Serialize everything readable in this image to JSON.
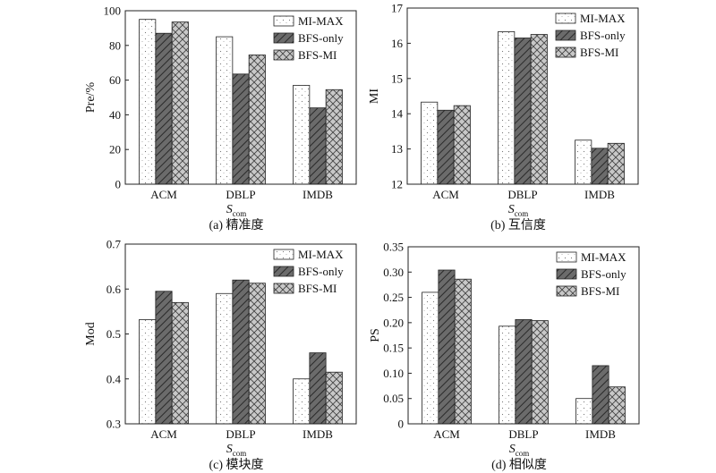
{
  "legend_labels": [
    "MI-MAX",
    "BFS-only",
    "BFS-MI"
  ],
  "colors": {
    "dots_fill": "#ffffff",
    "hatch_fill": "#6b6b6b",
    "cross_fill": "#c8c8c8",
    "stroke": "#222222"
  },
  "chart_data": [
    {
      "type": "bar",
      "categories": [
        "ACM",
        "DBLP",
        "IMDB"
      ],
      "series": [
        {
          "name": "MI-MAX",
          "values": [
            95,
            85,
            57
          ]
        },
        {
          "name": "BFS-only",
          "values": [
            87,
            63.5,
            44
          ]
        },
        {
          "name": "BFS-MI",
          "values": [
            93.5,
            74.5,
            54.5
          ]
        }
      ],
      "ylabel": "Pre/%",
      "xlabel_main": "S",
      "xlabel_sub": "com",
      "caption": "(a) 精准度",
      "ylim": [
        0,
        100
      ],
      "yticks": [
        "0",
        "20",
        "40",
        "60",
        "80",
        "100"
      ],
      "legend_position": "top-right"
    },
    {
      "type": "bar",
      "categories": [
        "ACM",
        "DBLP",
        "IMDB"
      ],
      "series": [
        {
          "name": "MI-MAX",
          "values": [
            14.33,
            16.33,
            13.25
          ]
        },
        {
          "name": "BFS-only",
          "values": [
            14.1,
            16.15,
            13.02
          ]
        },
        {
          "name": "BFS-MI",
          "values": [
            14.23,
            16.25,
            13.16
          ]
        }
      ],
      "ylabel": "MI",
      "xlabel_main": "S",
      "xlabel_sub": "com",
      "caption": "(b) 互信度",
      "ylim": [
        12,
        17
      ],
      "yticks": [
        "12",
        "13",
        "14",
        "15",
        "16",
        "17"
      ],
      "legend_position": "top-right"
    },
    {
      "type": "bar",
      "categories": [
        "ACM",
        "DBLP",
        "IMDB"
      ],
      "series": [
        {
          "name": "MI-MAX",
          "values": [
            0.532,
            0.59,
            0.4
          ]
        },
        {
          "name": "BFS-only",
          "values": [
            0.595,
            0.62,
            0.458
          ]
        },
        {
          "name": "BFS-MI",
          "values": [
            0.57,
            0.613,
            0.415
          ]
        }
      ],
      "ylabel": "Mod",
      "xlabel_main": "S",
      "xlabel_sub": "com",
      "caption": "(c) 模块度",
      "ylim": [
        0.3,
        0.7
      ],
      "yticks": [
        "0.3",
        "0.4",
        "0.5",
        "0.6",
        "0.7"
      ],
      "legend_position": "top-right"
    },
    {
      "type": "bar",
      "categories": [
        "ACM",
        "DBLP",
        "IMDB"
      ],
      "series": [
        {
          "name": "MI-MAX",
          "values": [
            0.26,
            0.193,
            0.05
          ]
        },
        {
          "name": "BFS-only",
          "values": [
            0.304,
            0.206,
            0.115
          ]
        },
        {
          "name": "BFS-MI",
          "values": [
            0.286,
            0.204,
            0.073
          ]
        }
      ],
      "ylabel": "PS",
      "xlabel_main": "S",
      "xlabel_sub": "com",
      "caption": "(d) 相似度",
      "ylim": [
        0,
        0.35
      ],
      "yticks": [
        "0",
        "0.05",
        "0.10",
        "0.15",
        "0.20",
        "0.25",
        "0.30",
        "0.35"
      ],
      "legend_position": "top-right"
    }
  ]
}
